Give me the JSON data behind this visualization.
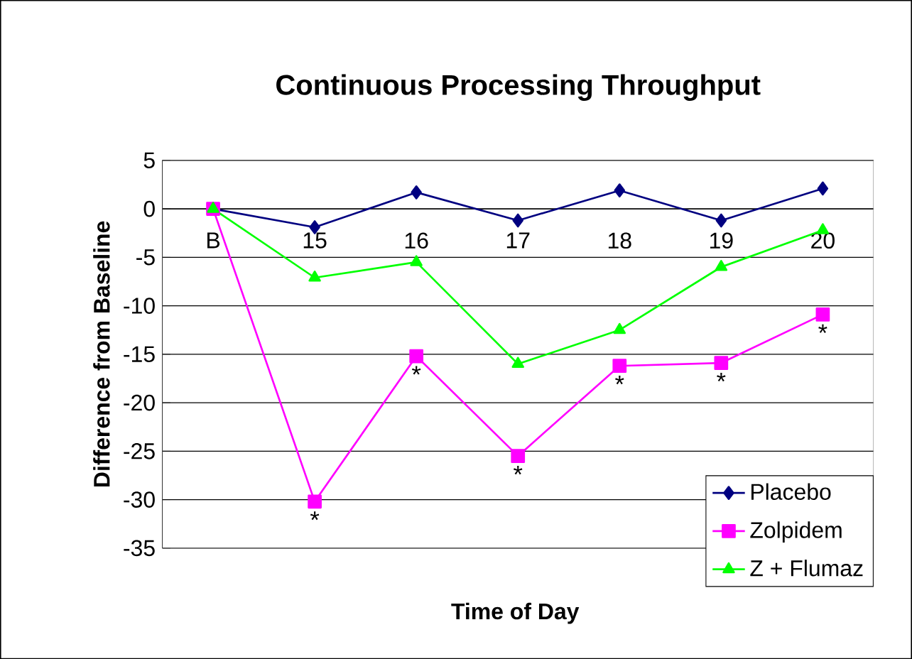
{
  "chart_data": {
    "type": "line",
    "title": "Continuous Processing Throughput",
    "xlabel": "Time of Day",
    "ylabel": "Difference from Baseline",
    "categories": [
      "B",
      "15",
      "16",
      "17",
      "18",
      "19",
      "20"
    ],
    "series": [
      {
        "name": "Placebo",
        "color": "#000080",
        "marker": "diamond",
        "values": [
          0,
          -1.9,
          1.7,
          -1.2,
          1.9,
          -1.2,
          2.1
        ]
      },
      {
        "name": "Zolpidem",
        "color": "#ff00ff",
        "marker": "square",
        "values": [
          0,
          -30.2,
          -15.2,
          -25.5,
          -16.2,
          -15.9,
          -10.9
        ]
      },
      {
        "name": "Z + Flumaz",
        "color": "#00ff00",
        "marker": "triangle",
        "values": [
          0,
          -7.1,
          -5.5,
          -16,
          -12.5,
          -6,
          -2.2
        ]
      }
    ],
    "ylim": [
      -35,
      5
    ],
    "yticks": [
      -35,
      -30,
      -25,
      -20,
      -15,
      -10,
      -5,
      0,
      5
    ],
    "grid": "y",
    "legend": "bottom right",
    "annotations": [
      {
        "text": "*",
        "x": "15",
        "y": -30.2
      },
      {
        "text": "*",
        "x": "16",
        "y": -15.2
      },
      {
        "text": "*",
        "x": "17",
        "y": -25.5
      },
      {
        "text": "*",
        "x": "18",
        "y": -16.2
      },
      {
        "text": "*",
        "x": "19",
        "y": -15.9
      },
      {
        "text": "*",
        "x": "20",
        "y": -10.9
      }
    ]
  }
}
